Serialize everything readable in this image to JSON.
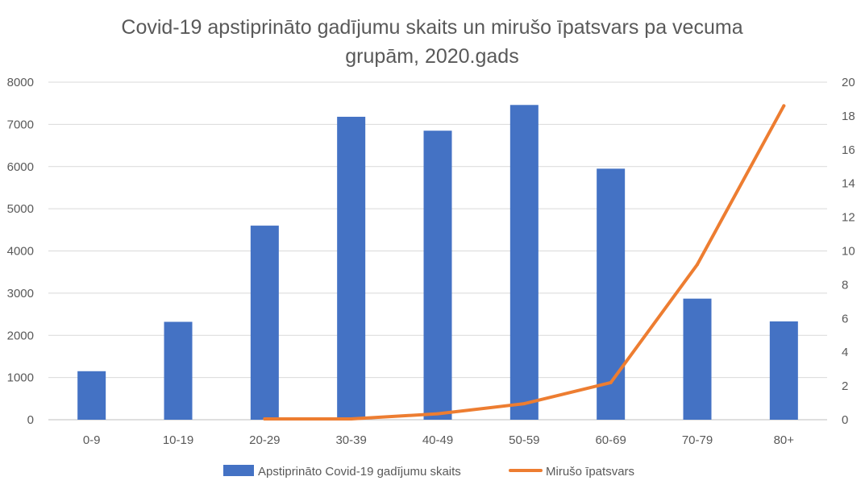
{
  "chart_data": {
    "type": "bar",
    "title_lines": [
      "Covid-19 apstiprināto gadījumu skaits un mirušo īpatsvars pa vecuma",
      "grupām, 2020.gads"
    ],
    "categories": [
      "0-9",
      "10-19",
      "20-29",
      "30-39",
      "40-49",
      "50-59",
      "60-69",
      "70-79",
      "80+"
    ],
    "series": [
      {
        "name": "Apstiprināto Covid-19 gadījumu skaits",
        "type": "bar",
        "axis": "left",
        "color": "#4472C4",
        "values": [
          1150,
          2320,
          4600,
          7180,
          6850,
          7460,
          5950,
          2870,
          2330
        ]
      },
      {
        "name": "Mirušo īpatsvars",
        "type": "line",
        "axis": "right",
        "color": "#ED7D31",
        "values": [
          null,
          null,
          0.05,
          0.05,
          0.35,
          0.95,
          2.2,
          9.2,
          18.6
        ]
      }
    ],
    "y_left": {
      "min": 0,
      "max": 8000,
      "ticks": [
        "0",
        "1000",
        "2000",
        "3000",
        "4000",
        "5000",
        "6000",
        "7000",
        "8000"
      ]
    },
    "y_right": {
      "min": 0,
      "max": 20,
      "ticks": [
        "0",
        "2",
        "4",
        "6",
        "8",
        "10",
        "12",
        "14",
        "16",
        "18",
        "20"
      ]
    },
    "grid": true,
    "legend_position": "bottom",
    "colors": {
      "text": "#595959",
      "grid": "#D9D9D9",
      "axis": "#BFBFBF"
    }
  }
}
